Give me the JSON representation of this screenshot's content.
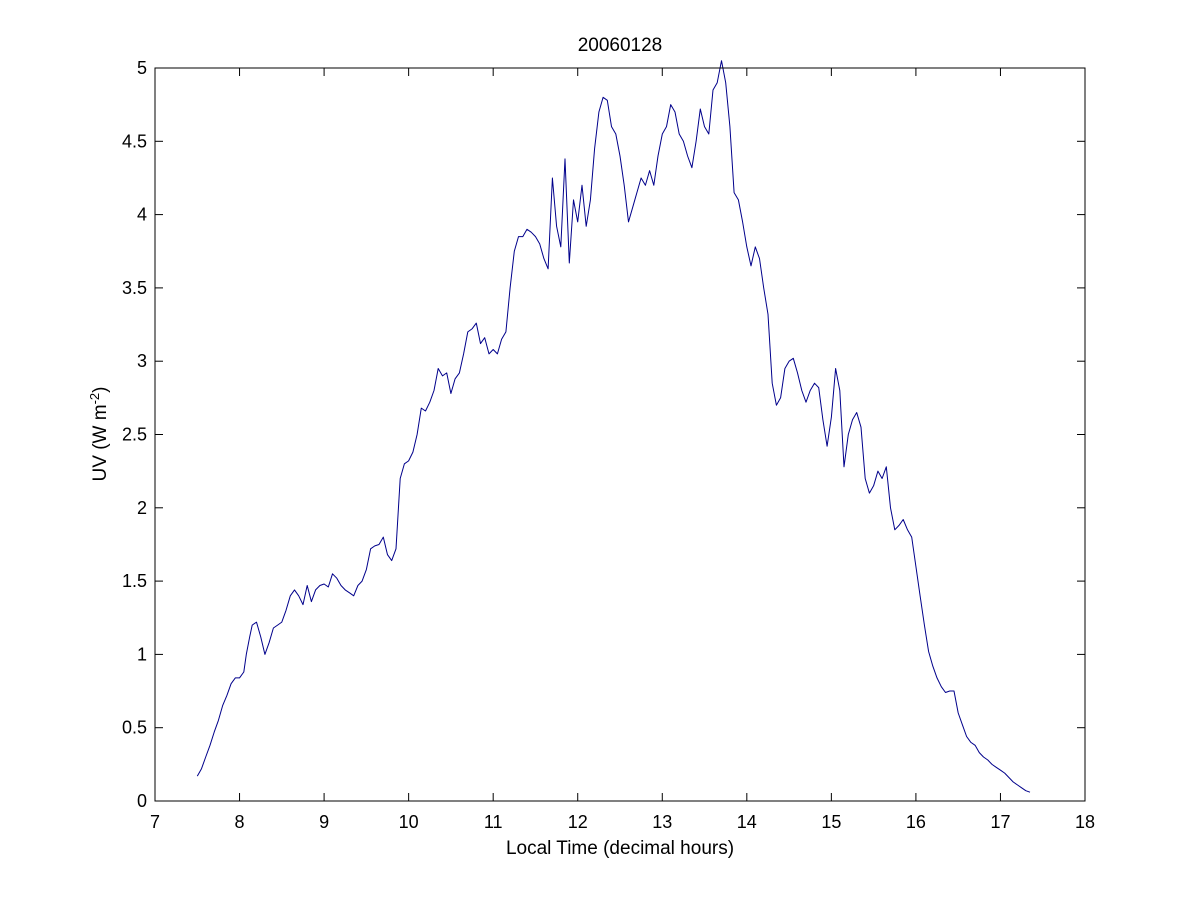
{
  "chart_data": {
    "type": "line",
    "title": "20060128",
    "xlabel": "Local Time (decimal hours)",
    "ylabel": {
      "main": "UV (W m",
      "superscript": "-2",
      "close": ")"
    },
    "xlim": [
      7,
      18
    ],
    "ylim": [
      0,
      5
    ],
    "xticks": [
      7,
      8,
      9,
      10,
      11,
      12,
      13,
      14,
      15,
      16,
      17,
      18
    ],
    "yticks": [
      0,
      0.5,
      1,
      1.5,
      2,
      2.5,
      3,
      3.5,
      4,
      4.5,
      5
    ],
    "ytick_labels": [
      "0",
      "0.5",
      "1",
      "1.5",
      "2",
      "2.5",
      "3",
      "3.5",
      "4",
      "4.5",
      "5"
    ],
    "grid": false,
    "line_color": "#00008b",
    "series": [
      {
        "x": [
          7.5,
          7.55,
          7.6,
          7.65,
          7.7,
          7.75,
          7.8,
          7.85,
          7.9,
          7.95,
          8.0,
          8.05,
          8.08,
          8.12,
          8.15,
          8.2,
          8.25,
          8.3,
          8.35,
          8.4,
          8.45,
          8.5,
          8.55,
          8.6,
          8.65,
          8.7,
          8.75,
          8.8,
          8.85,
          8.9,
          8.95,
          9.0,
          9.05,
          9.1,
          9.15,
          9.2,
          9.25,
          9.3,
          9.35,
          9.4,
          9.45,
          9.5,
          9.55,
          9.6,
          9.65,
          9.7,
          9.75,
          9.8,
          9.85,
          9.9,
          9.95,
          10.0,
          10.05,
          10.1,
          10.15,
          10.2,
          10.25,
          10.3,
          10.35,
          10.4,
          10.45,
          10.5,
          10.55,
          10.6,
          10.65,
          10.7,
          10.75,
          10.8,
          10.85,
          10.9,
          10.95,
          11.0,
          11.05,
          11.1,
          11.15,
          11.2,
          11.25,
          11.3,
          11.35,
          11.4,
          11.45,
          11.5,
          11.55,
          11.6,
          11.65,
          11.7,
          11.75,
          11.8,
          11.85,
          11.9,
          11.95,
          12.0,
          12.05,
          12.1,
          12.15,
          12.2,
          12.25,
          12.3,
          12.35,
          12.4,
          12.45,
          12.5,
          12.55,
          12.6,
          12.65,
          12.7,
          12.75,
          12.8,
          12.85,
          12.9,
          12.95,
          13.0,
          13.05,
          13.1,
          13.15,
          13.2,
          13.25,
          13.3,
          13.35,
          13.4,
          13.45,
          13.5,
          13.55,
          13.6,
          13.65,
          13.7,
          13.75,
          13.8,
          13.85,
          13.9,
          13.95,
          14.0,
          14.05,
          14.1,
          14.15,
          14.2,
          14.25,
          14.3,
          14.35,
          14.4,
          14.45,
          14.5,
          14.55,
          14.6,
          14.65,
          14.7,
          14.75,
          14.8,
          14.85,
          14.9,
          14.95,
          15.0,
          15.05,
          15.1,
          15.15,
          15.2,
          15.25,
          15.3,
          15.35,
          15.4,
          15.45,
          15.5,
          15.55,
          15.6,
          15.65,
          15.7,
          15.75,
          15.8,
          15.85,
          15.9,
          15.95,
          16.0,
          16.05,
          16.1,
          16.15,
          16.2,
          16.25,
          16.3,
          16.35,
          16.4,
          16.45,
          16.5,
          16.55,
          16.6,
          16.65,
          16.7,
          16.75,
          16.8,
          16.85,
          16.9,
          16.95,
          17.0,
          17.05,
          17.1,
          17.15,
          17.2,
          17.25,
          17.3,
          17.35
        ],
        "y": [
          0.17,
          0.22,
          0.3,
          0.38,
          0.47,
          0.55,
          0.65,
          0.72,
          0.8,
          0.84,
          0.84,
          0.88,
          1.0,
          1.12,
          1.2,
          1.22,
          1.12,
          1.0,
          1.08,
          1.18,
          1.2,
          1.22,
          1.3,
          1.4,
          1.44,
          1.4,
          1.34,
          1.47,
          1.36,
          1.44,
          1.47,
          1.48,
          1.46,
          1.55,
          1.52,
          1.47,
          1.44,
          1.42,
          1.4,
          1.47,
          1.5,
          1.58,
          1.72,
          1.74,
          1.75,
          1.8,
          1.68,
          1.64,
          1.72,
          2.2,
          2.3,
          2.32,
          2.38,
          2.5,
          2.68,
          2.66,
          2.72,
          2.8,
          2.95,
          2.9,
          2.92,
          2.78,
          2.88,
          2.92,
          3.05,
          3.2,
          3.22,
          3.26,
          3.12,
          3.16,
          3.05,
          3.08,
          3.05,
          3.15,
          3.2,
          3.5,
          3.75,
          3.85,
          3.85,
          3.9,
          3.88,
          3.85,
          3.8,
          3.7,
          3.63,
          4.25,
          3.92,
          3.78,
          4.38,
          3.67,
          4.1,
          3.95,
          4.2,
          3.92,
          4.1,
          4.45,
          4.7,
          4.8,
          4.78,
          4.6,
          4.55,
          4.4,
          4.2,
          3.95,
          4.05,
          4.15,
          4.25,
          4.2,
          4.3,
          4.2,
          4.4,
          4.55,
          4.6,
          4.75,
          4.7,
          4.55,
          4.5,
          4.4,
          4.32,
          4.5,
          4.72,
          4.6,
          4.55,
          4.85,
          4.9,
          5.05,
          4.9,
          4.6,
          4.15,
          4.1,
          3.95,
          3.78,
          3.65,
          3.78,
          3.7,
          3.5,
          3.32,
          2.85,
          2.7,
          2.75,
          2.95,
          3.0,
          3.02,
          2.92,
          2.8,
          2.72,
          2.8,
          2.85,
          2.82,
          2.6,
          2.42,
          2.62,
          2.95,
          2.8,
          2.28,
          2.5,
          2.6,
          2.65,
          2.55,
          2.2,
          2.1,
          2.15,
          2.25,
          2.2,
          2.28,
          2.0,
          1.85,
          1.88,
          1.92,
          1.85,
          1.8,
          1.6,
          1.4,
          1.2,
          1.02,
          0.92,
          0.84,
          0.78,
          0.74,
          0.75,
          0.75,
          0.6,
          0.52,
          0.44,
          0.4,
          0.38,
          0.33,
          0.3,
          0.28,
          0.25,
          0.23,
          0.21,
          0.19,
          0.16,
          0.13,
          0.11,
          0.09,
          0.07,
          0.06
        ]
      }
    ]
  }
}
